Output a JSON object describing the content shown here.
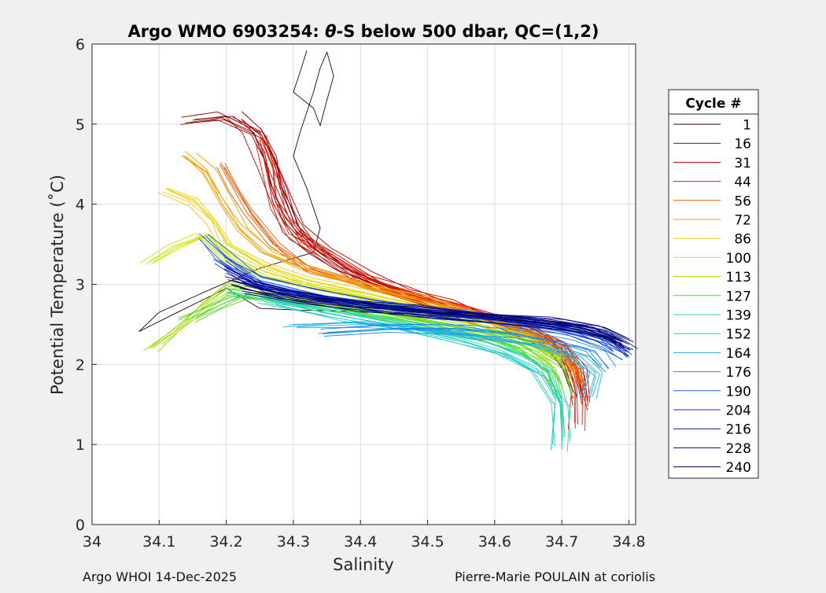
{
  "chart_data": {
    "type": "line",
    "title_prefix": "Argo WMO 6903254: ",
    "title_theta": "θ",
    "title_suffix": "-S below 500 dbar,  QC=(1,2)",
    "xlabel": "Salinity",
    "ylabel": "Potential Temperature (˚C)",
    "xlim": [
      34.0,
      34.81
    ],
    "ylim": [
      0,
      6
    ],
    "xticks": [
      34.0,
      34.1,
      34.2,
      34.3,
      34.4,
      34.5,
      34.6,
      34.7,
      34.8
    ],
    "xtick_labels": [
      "34",
      "34.1",
      "34.2",
      "34.3",
      "34.4",
      "34.5",
      "34.6",
      "34.7",
      "34.8"
    ],
    "yticks": [
      0,
      1,
      2,
      3,
      4,
      5,
      6
    ],
    "ytick_labels": [
      "0",
      "1",
      "2",
      "3",
      "4",
      "5",
      "6"
    ],
    "grid": true,
    "legend_title": "Cycle #",
    "legend_position": "right",
    "series": [
      {
        "name": "1",
        "color": "#2b0000",
        "points": [
          [
            34.32,
            5.92
          ],
          [
            34.31,
            5.65
          ],
          [
            34.3,
            5.4
          ],
          [
            34.33,
            5.2
          ],
          [
            34.34,
            4.98
          ],
          [
            34.35,
            5.3
          ],
          [
            34.36,
            5.6
          ],
          [
            34.35,
            5.9
          ],
          [
            34.34,
            5.7
          ],
          [
            34.33,
            5.4
          ],
          [
            34.31,
            4.9
          ],
          [
            34.3,
            4.6
          ],
          [
            34.32,
            4.2
          ],
          [
            34.34,
            3.7
          ],
          [
            34.33,
            3.4
          ],
          [
            34.25,
            3.2
          ],
          [
            34.18,
            2.95
          ],
          [
            34.1,
            2.65
          ],
          [
            34.07,
            2.41
          ],
          [
            34.12,
            2.62
          ],
          [
            34.2,
            2.95
          ],
          [
            34.25,
            2.7
          ],
          [
            34.3,
            2.68
          ],
          [
            34.4,
            2.66
          ],
          [
            34.5,
            2.64
          ],
          [
            34.6,
            2.6
          ],
          [
            34.7,
            2.52
          ],
          [
            34.76,
            2.4
          ],
          [
            34.79,
            2.3
          ]
        ]
      },
      {
        "name": "16",
        "color": "#8a0000",
        "points": [
          [
            34.15,
            5.05
          ],
          [
            34.2,
            5.1
          ],
          [
            34.25,
            4.9
          ],
          [
            34.27,
            4.6
          ],
          [
            34.28,
            4.2
          ],
          [
            34.3,
            3.8
          ],
          [
            34.33,
            3.5
          ],
          [
            34.38,
            3.2
          ],
          [
            34.45,
            2.95
          ],
          [
            34.5,
            2.8
          ],
          [
            34.55,
            2.68
          ],
          [
            34.6,
            2.55
          ],
          [
            34.65,
            2.4
          ],
          [
            34.7,
            2.2
          ],
          [
            34.72,
            1.95
          ],
          [
            34.73,
            1.6
          ]
        ]
      },
      {
        "name": "31",
        "color": "#c00000",
        "points": [
          [
            34.21,
            5.1
          ],
          [
            34.24,
            4.9
          ],
          [
            34.26,
            4.5
          ],
          [
            34.28,
            4.1
          ],
          [
            34.3,
            3.7
          ],
          [
            34.34,
            3.4
          ],
          [
            34.4,
            3.1
          ],
          [
            34.46,
            2.9
          ],
          [
            34.52,
            2.75
          ],
          [
            34.58,
            2.58
          ],
          [
            34.64,
            2.42
          ],
          [
            34.69,
            2.22
          ],
          [
            34.72,
            1.9
          ],
          [
            34.73,
            1.5
          ]
        ]
      },
      {
        "name": "44",
        "color": "#e31a00",
        "points": [
          [
            34.25,
            4.8
          ],
          [
            34.26,
            4.4
          ],
          [
            34.27,
            4.0
          ],
          [
            34.3,
            3.6
          ],
          [
            34.36,
            3.3
          ],
          [
            34.42,
            3.0
          ],
          [
            34.48,
            2.83
          ],
          [
            34.54,
            2.7
          ],
          [
            34.6,
            2.55
          ],
          [
            34.66,
            2.38
          ],
          [
            34.7,
            2.15
          ],
          [
            34.72,
            1.7
          ],
          [
            34.72,
            1.2
          ]
        ]
      },
      {
        "name": "56",
        "color": "#f25c00",
        "points": [
          [
            34.19,
            4.5
          ],
          [
            34.21,
            4.2
          ],
          [
            34.23,
            3.9
          ],
          [
            34.27,
            3.5
          ],
          [
            34.32,
            3.2
          ],
          [
            34.4,
            3.0
          ],
          [
            34.48,
            2.82
          ],
          [
            34.56,
            2.66
          ],
          [
            34.62,
            2.5
          ],
          [
            34.67,
            2.32
          ],
          [
            34.71,
            2.05
          ],
          [
            34.73,
            1.75
          ]
        ]
      },
      {
        "name": "72",
        "color": "#f7a000",
        "points": [
          [
            34.14,
            4.6
          ],
          [
            34.17,
            4.4
          ],
          [
            34.2,
            4.0
          ],
          [
            34.22,
            3.7
          ],
          [
            34.26,
            3.4
          ],
          [
            34.33,
            3.15
          ],
          [
            34.42,
            2.95
          ],
          [
            34.5,
            2.78
          ],
          [
            34.58,
            2.6
          ],
          [
            34.65,
            2.4
          ],
          [
            34.7,
            2.15
          ],
          [
            34.72,
            1.85
          ]
        ]
      },
      {
        "name": "86",
        "color": "#e8d400",
        "points": [
          [
            34.11,
            4.2
          ],
          [
            34.15,
            4.05
          ],
          [
            34.18,
            3.8
          ],
          [
            34.2,
            3.5
          ],
          [
            34.25,
            3.25
          ],
          [
            34.32,
            3.05
          ],
          [
            34.4,
            2.9
          ],
          [
            34.5,
            2.72
          ],
          [
            34.58,
            2.56
          ],
          [
            34.65,
            2.36
          ],
          [
            34.7,
            2.1
          ]
        ]
      },
      {
        "name": "100",
        "color": "#cfe800",
        "points": [
          [
            34.08,
            3.25
          ],
          [
            34.12,
            3.45
          ],
          [
            34.16,
            3.6
          ],
          [
            34.2,
            3.3
          ],
          [
            34.25,
            3.1
          ],
          [
            34.33,
            2.95
          ],
          [
            34.42,
            2.8
          ],
          [
            34.5,
            2.65
          ],
          [
            34.58,
            2.48
          ],
          [
            34.64,
            2.3
          ],
          [
            34.69,
            2.05
          ]
        ]
      },
      {
        "name": "113",
        "color": "#9be000",
        "points": [
          [
            34.09,
            2.2
          ],
          [
            34.13,
            2.45
          ],
          [
            34.17,
            2.75
          ],
          [
            34.21,
            3.0
          ],
          [
            34.28,
            2.9
          ],
          [
            34.38,
            2.75
          ],
          [
            34.47,
            2.6
          ],
          [
            34.56,
            2.45
          ],
          [
            34.63,
            2.28
          ],
          [
            34.68,
            2.05
          ],
          [
            34.7,
            1.75
          ]
        ]
      },
      {
        "name": "127",
        "color": "#4cd820",
        "points": [
          [
            34.14,
            2.55
          ],
          [
            34.18,
            2.7
          ],
          [
            34.22,
            2.85
          ],
          [
            34.3,
            2.78
          ],
          [
            34.4,
            2.65
          ],
          [
            34.5,
            2.5
          ],
          [
            34.58,
            2.36
          ],
          [
            34.65,
            2.18
          ],
          [
            34.69,
            1.95
          ],
          [
            34.7,
            1.6
          ]
        ]
      },
      {
        "name": "139",
        "color": "#28d88a",
        "points": [
          [
            34.2,
            2.9
          ],
          [
            34.3,
            2.75
          ],
          [
            34.4,
            2.6
          ],
          [
            34.5,
            2.45
          ],
          [
            34.58,
            2.3
          ],
          [
            34.64,
            2.12
          ],
          [
            34.68,
            1.9
          ],
          [
            34.7,
            1.5
          ],
          [
            34.7,
            1.1
          ]
        ]
      },
      {
        "name": "152",
        "color": "#1ecfc8",
        "points": [
          [
            34.26,
            2.8
          ],
          [
            34.36,
            2.62
          ],
          [
            34.46,
            2.47
          ],
          [
            34.55,
            2.3
          ],
          [
            34.62,
            2.12
          ],
          [
            34.67,
            1.9
          ],
          [
            34.7,
            1.5
          ],
          [
            34.7,
            0.95
          ]
        ]
      },
      {
        "name": "164",
        "color": "#20b0e0",
        "points": [
          [
            34.3,
            2.5
          ],
          [
            34.4,
            2.52
          ],
          [
            34.5,
            2.45
          ],
          [
            34.58,
            2.35
          ],
          [
            34.66,
            2.25
          ],
          [
            34.72,
            2.1
          ],
          [
            34.75,
            1.9
          ],
          [
            34.74,
            1.6
          ]
        ]
      },
      {
        "name": "176",
        "color": "#1e8ee8",
        "points": [
          [
            34.35,
            2.4
          ],
          [
            34.45,
            2.45
          ],
          [
            34.55,
            2.45
          ],
          [
            34.63,
            2.38
          ],
          [
            34.7,
            2.28
          ],
          [
            34.75,
            2.15
          ],
          [
            34.77,
            1.95
          ]
        ]
      },
      {
        "name": "190",
        "color": "#1a62e8",
        "points": [
          [
            34.17,
            3.6
          ],
          [
            34.2,
            3.35
          ],
          [
            34.25,
            3.05
          ],
          [
            34.35,
            2.85
          ],
          [
            34.45,
            2.72
          ],
          [
            34.55,
            2.62
          ],
          [
            34.65,
            2.5
          ],
          [
            34.72,
            2.38
          ],
          [
            34.77,
            2.25
          ],
          [
            34.8,
            2.1
          ]
        ]
      },
      {
        "name": "204",
        "color": "#1030d8",
        "points": [
          [
            34.19,
            3.3
          ],
          [
            34.24,
            3.05
          ],
          [
            34.32,
            2.88
          ],
          [
            34.42,
            2.75
          ],
          [
            34.52,
            2.65
          ],
          [
            34.62,
            2.56
          ],
          [
            34.7,
            2.48
          ],
          [
            34.76,
            2.35
          ],
          [
            34.79,
            2.2
          ]
        ]
      },
      {
        "name": "216",
        "color": "#0a10b0",
        "points": [
          [
            34.2,
            3.2
          ],
          [
            34.26,
            2.95
          ],
          [
            34.35,
            2.82
          ],
          [
            34.45,
            2.7
          ],
          [
            34.55,
            2.62
          ],
          [
            34.65,
            2.54
          ],
          [
            34.73,
            2.45
          ],
          [
            34.78,
            2.3
          ],
          [
            34.8,
            2.15
          ]
        ]
      },
      {
        "name": "228",
        "color": "#050580",
        "points": [
          [
            34.21,
            3.05
          ],
          [
            34.28,
            2.88
          ],
          [
            34.38,
            2.76
          ],
          [
            34.48,
            2.67
          ],
          [
            34.58,
            2.6
          ],
          [
            34.68,
            2.52
          ],
          [
            34.75,
            2.42
          ],
          [
            34.79,
            2.28
          ]
        ]
      },
      {
        "name": "240",
        "color": "#000060",
        "points": [
          [
            34.22,
            2.95
          ],
          [
            34.3,
            2.82
          ],
          [
            34.4,
            2.72
          ],
          [
            34.5,
            2.64
          ],
          [
            34.6,
            2.58
          ],
          [
            34.7,
            2.5
          ],
          [
            34.76,
            2.4
          ],
          [
            34.8,
            2.25
          ]
        ]
      }
    ]
  },
  "footer": {
    "left": "Argo WHOI 14-Dec-2025",
    "right": "Pierre-Marie POULAIN at coriolis"
  }
}
